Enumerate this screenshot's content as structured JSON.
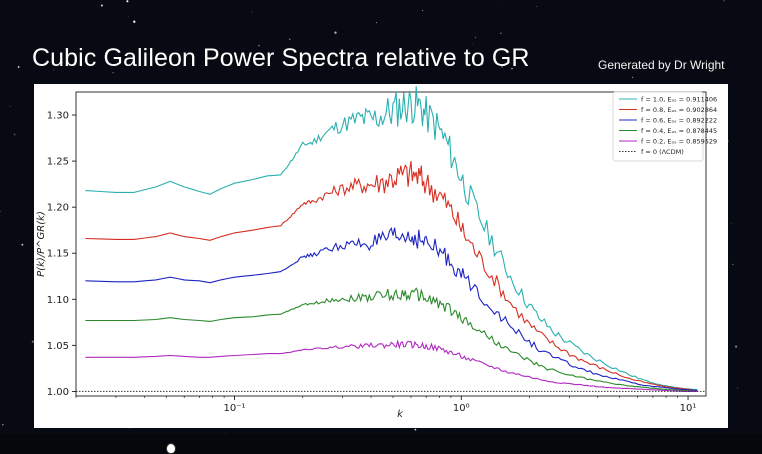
{
  "slide": {
    "title": "Cubic Galileon Power Spectra relative to GR",
    "credit": "Generated by Dr Wright"
  },
  "chart_data": {
    "type": "line",
    "title": "",
    "xlabel": "k",
    "ylabel": "P(k)/P^GR(k)",
    "xscale": "log",
    "xlim": [
      0.02,
      12
    ],
    "ylim": [
      0.995,
      1.325
    ],
    "xticks": [
      {
        "value": 0.1,
        "label": "10⁻¹"
      },
      {
        "value": 1,
        "label": "10⁰"
      },
      {
        "value": 10,
        "label": "10¹"
      }
    ],
    "yticks": [
      {
        "value": 1.0,
        "label": "1.00"
      },
      {
        "value": 1.05,
        "label": "1.05"
      },
      {
        "value": 1.1,
        "label": "1.10"
      },
      {
        "value": 1.15,
        "label": "1.15"
      },
      {
        "value": 1.2,
        "label": "1.20"
      },
      {
        "value": 1.25,
        "label": "1.25"
      },
      {
        "value": 1.3,
        "label": "1.30"
      }
    ],
    "legend_position": "top-right",
    "x": [
      0.022,
      0.03,
      0.036,
      0.045,
      0.052,
      0.06,
      0.07,
      0.078,
      0.087,
      0.1,
      0.12,
      0.14,
      0.16,
      0.18,
      0.2,
      0.22,
      0.25,
      0.28,
      0.32,
      0.36,
      0.4,
      0.45,
      0.5,
      0.55,
      0.6,
      0.65,
      0.7,
      0.78,
      0.86,
      0.95,
      1.05,
      1.2,
      1.4,
      1.6,
      1.9,
      2.2,
      2.6,
      3.1,
      3.7,
      4.5,
      5.5,
      6.6,
      8,
      9.5,
      11
    ],
    "series": [
      {
        "name": "f = 1.0, E_dS = 0.911406",
        "label": "f = 1.0, Eₔₛ = 0.911406",
        "color": "#2ab0b0",
        "values": [
          1.218,
          1.216,
          1.216,
          1.222,
          1.228,
          1.222,
          1.217,
          1.214,
          1.22,
          1.226,
          1.23,
          1.234,
          1.235,
          1.252,
          1.268,
          1.27,
          1.28,
          1.287,
          1.292,
          1.296,
          1.295,
          1.3,
          1.305,
          1.31,
          1.312,
          1.31,
          1.3,
          1.288,
          1.27,
          1.245,
          1.22,
          1.19,
          1.158,
          1.13,
          1.1,
          1.08,
          1.063,
          1.05,
          1.038,
          1.028,
          1.018,
          1.011,
          1.006,
          1.003,
          1.002
        ]
      },
      {
        "name": "f = 0.8, E_dS = 0.902864",
        "label": "f = 0.8, Eₔₛ = 0.902864",
        "color": "#d62f22",
        "values": [
          1.166,
          1.165,
          1.165,
          1.168,
          1.172,
          1.168,
          1.166,
          1.164,
          1.168,
          1.172,
          1.175,
          1.178,
          1.18,
          1.192,
          1.204,
          1.206,
          1.213,
          1.218,
          1.222,
          1.224,
          1.225,
          1.228,
          1.232,
          1.235,
          1.236,
          1.233,
          1.226,
          1.217,
          1.204,
          1.187,
          1.168,
          1.146,
          1.122,
          1.1,
          1.078,
          1.063,
          1.05,
          1.039,
          1.03,
          1.022,
          1.014,
          1.009,
          1.005,
          1.003,
          1.001
        ]
      },
      {
        "name": "f = 0.6, E_dS = 0.892222",
        "label": "f = 0.6, Eₔₛ = 0.892222",
        "color": "#1d24c4",
        "values": [
          1.12,
          1.119,
          1.119,
          1.121,
          1.124,
          1.121,
          1.12,
          1.118,
          1.121,
          1.124,
          1.126,
          1.128,
          1.13,
          1.138,
          1.146,
          1.148,
          1.153,
          1.157,
          1.159,
          1.16,
          1.161,
          1.163,
          1.166,
          1.168,
          1.168,
          1.166,
          1.16,
          1.154,
          1.145,
          1.134,
          1.121,
          1.106,
          1.089,
          1.073,
          1.058,
          1.046,
          1.036,
          1.028,
          1.021,
          1.015,
          1.01,
          1.006,
          1.004,
          1.002,
          1.001
        ]
      },
      {
        "name": "f = 0.4, E_dS = 0.878445",
        "label": "f = 0.4, Eₔₛ = 0.878445",
        "color": "#2a8a2a",
        "values": [
          1.077,
          1.077,
          1.077,
          1.078,
          1.08,
          1.078,
          1.077,
          1.076,
          1.078,
          1.08,
          1.081,
          1.083,
          1.084,
          1.089,
          1.094,
          1.095,
          1.098,
          1.1,
          1.101,
          1.102,
          1.103,
          1.104,
          1.105,
          1.106,
          1.106,
          1.105,
          1.101,
          1.097,
          1.091,
          1.084,
          1.076,
          1.066,
          1.055,
          1.045,
          1.036,
          1.028,
          1.022,
          1.017,
          1.013,
          1.009,
          1.006,
          1.004,
          1.002,
          1.001,
          1.0
        ]
      },
      {
        "name": "f = 0.2, E_dS = 0.859529",
        "label": "f = 0.2, Eₔₛ = 0.859529",
        "color": "#b02ac0",
        "values": [
          1.037,
          1.037,
          1.037,
          1.038,
          1.039,
          1.038,
          1.037,
          1.037,
          1.038,
          1.039,
          1.04,
          1.041,
          1.041,
          1.043,
          1.045,
          1.046,
          1.047,
          1.048,
          1.049,
          1.049,
          1.05,
          1.05,
          1.051,
          1.051,
          1.051,
          1.05,
          1.049,
          1.047,
          1.044,
          1.04,
          1.036,
          1.031,
          1.026,
          1.021,
          1.017,
          1.013,
          1.01,
          1.008,
          1.006,
          1.004,
          1.003,
          1.002,
          1.001,
          1.0,
          1.0
        ]
      },
      {
        "name": "f = 0 (ΛCDM)",
        "label": "f = 0 (ΛCDM)",
        "color": "#333333",
        "dashed": true,
        "values": [
          1.0,
          1.0,
          1.0,
          1.0,
          1.0,
          1.0,
          1.0,
          1.0,
          1.0,
          1.0,
          1.0,
          1.0,
          1.0,
          1.0,
          1.0,
          1.0,
          1.0,
          1.0,
          1.0,
          1.0,
          1.0,
          1.0,
          1.0,
          1.0,
          1.0,
          1.0,
          1.0,
          1.0,
          1.0,
          1.0,
          1.0,
          1.0,
          1.0,
          1.0,
          1.0,
          1.0,
          1.0,
          1.0,
          1.0,
          1.0,
          1.0,
          1.0,
          1.0,
          1.0,
          1.0
        ]
      }
    ]
  }
}
